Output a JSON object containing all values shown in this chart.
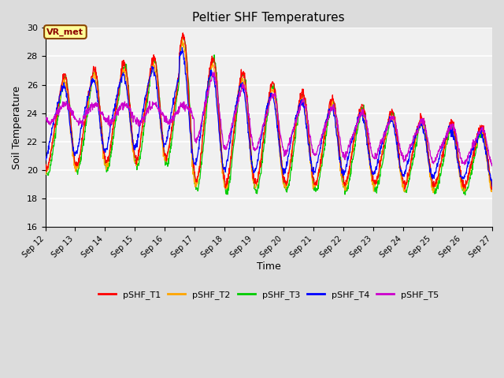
{
  "title": "Peltier SHF Temperatures",
  "xlabel": "Time",
  "ylabel": "Soil Temperature",
  "ylim": [
    16,
    30
  ],
  "yticks": [
    16,
    18,
    20,
    22,
    24,
    26,
    28,
    30
  ],
  "annotation_text": "VR_met",
  "annotation_color": "#8B0000",
  "annotation_bg": "#FFFF99",
  "annotation_border": "#8B4500",
  "series_colors": {
    "pSHF_T1": "#FF0000",
    "pSHF_T2": "#FFA500",
    "pSHF_T3": "#00CC00",
    "pSHF_T4": "#0000FF",
    "pSHF_T5": "#CC00CC"
  },
  "bg_color": "#DCDCDC",
  "plot_bg_color": "#F0F0F0",
  "grid_color": "#FFFFFF",
  "n_days": 15,
  "start_day": 12,
  "end_day": 27
}
